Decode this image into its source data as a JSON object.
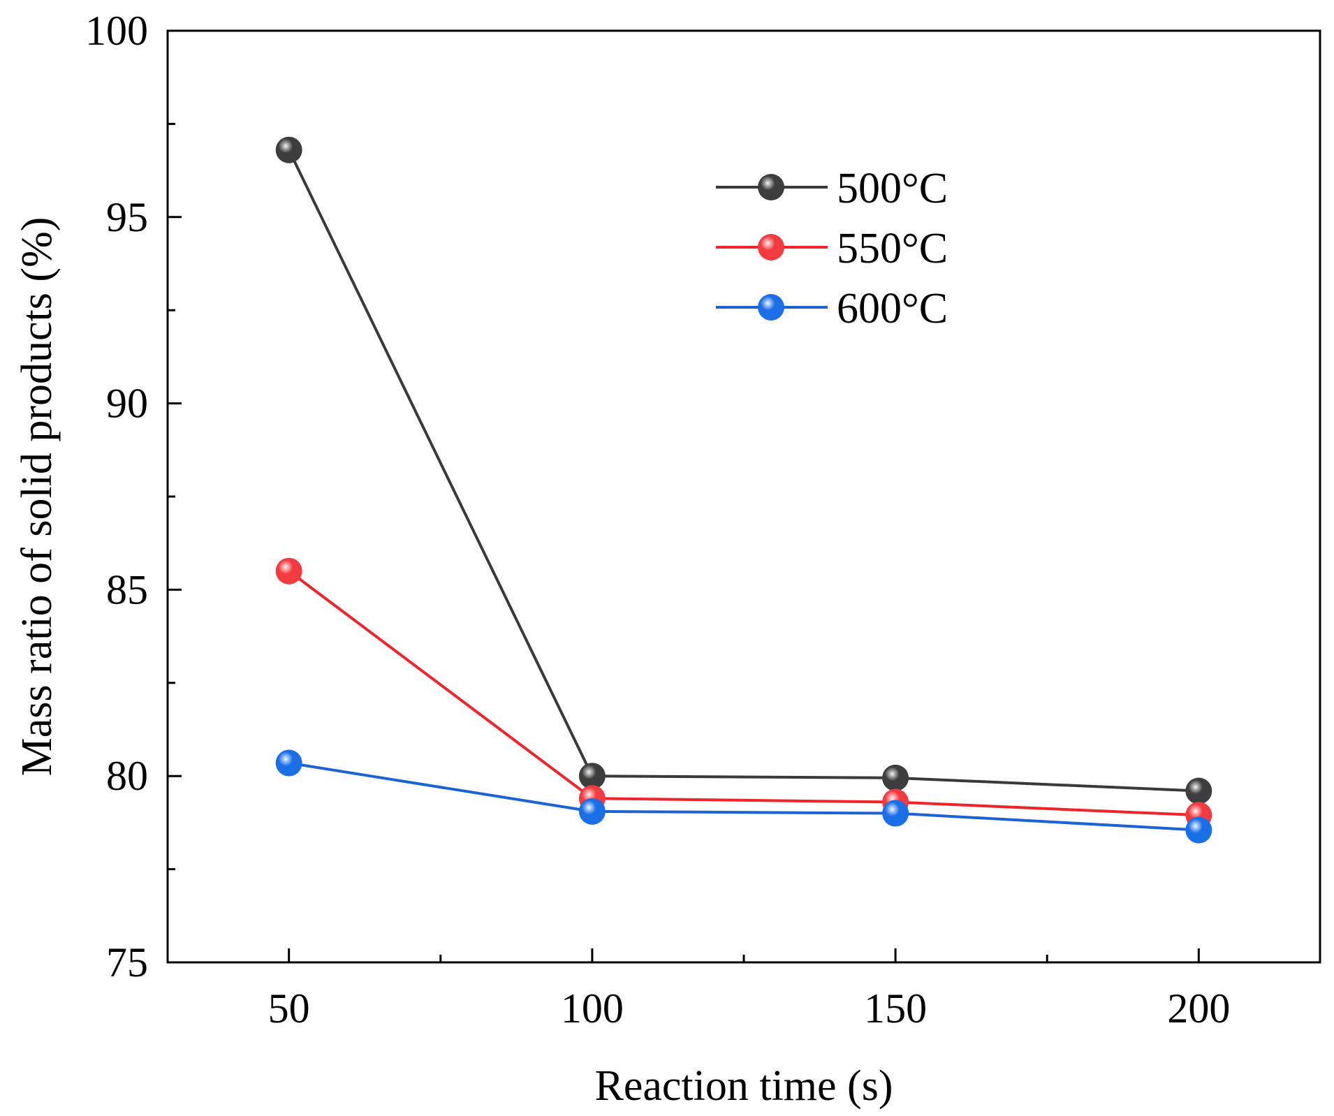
{
  "chart_data": {
    "type": "line",
    "title": "",
    "xlabel": "Reaction time (s)",
    "ylabel": "Mass ratio of solid products (%)",
    "xlim": [
      30,
      220
    ],
    "ylim": [
      75,
      100
    ],
    "x_ticks": [
      50,
      100,
      150,
      200
    ],
    "x_tick_labels": [
      "50",
      "100",
      "150",
      "200"
    ],
    "x_minor_ticks": [
      75,
      125,
      175
    ],
    "y_ticks": [
      75,
      80,
      85,
      90,
      95,
      100
    ],
    "y_tick_labels": [
      "75",
      "80",
      "85",
      "90",
      "95",
      "100"
    ],
    "y_minor_ticks": [
      77.5,
      82.5,
      87.5,
      92.5,
      97.5
    ],
    "legend_position": "top-right",
    "x": [
      50,
      100,
      150,
      200
    ],
    "series": [
      {
        "name": "500°C",
        "color": "#3a3a3a",
        "marker_color": "#3d3d3d",
        "values": [
          96.8,
          80.0,
          79.95,
          79.6
        ]
      },
      {
        "name": "550°C",
        "color": "#f0242a",
        "marker_color": "#f23a3f",
        "values": [
          85.5,
          79.4,
          79.3,
          78.95
        ]
      },
      {
        "name": "600°C",
        "color": "#1c64d6",
        "marker_color": "#1a6ee6",
        "values": [
          80.35,
          79.05,
          79.0,
          78.55
        ]
      }
    ]
  }
}
